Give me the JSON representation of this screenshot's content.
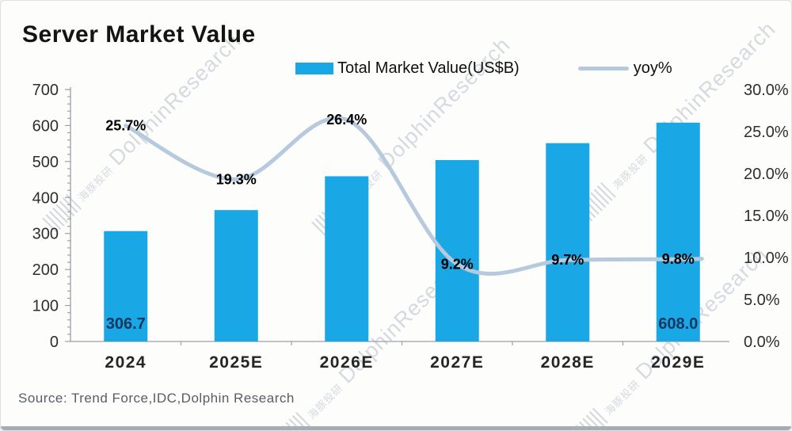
{
  "chart_data": {
    "type": "bar",
    "title": "Server Market Value",
    "categories": [
      "2024",
      "2025E",
      "2026E",
      "2027E",
      "2028E",
      "2029E"
    ],
    "series": [
      {
        "name": "Total Market Value(US$B)",
        "type": "bar",
        "axis": "left",
        "values": [
          306.7,
          365,
          459,
          504,
          551,
          608.0
        ],
        "value_labels": [
          "306.7",
          "",
          "",
          "",
          "",
          "608.0"
        ],
        "color": "#19a7e5",
        "label_color": "#17375e"
      },
      {
        "name": "yoy%",
        "type": "line",
        "axis": "right",
        "values": [
          25.7,
          19.3,
          26.4,
          9.2,
          9.7,
          9.8
        ],
        "value_labels": [
          "25.7%",
          "19.3%",
          "26.4%",
          "9.2%",
          "9.7%",
          "9.8%"
        ],
        "color": "#b6c9dd",
        "label_color": "#000000"
      }
    ],
    "left_axis": {
      "min": 0,
      "max": 700,
      "step": 100,
      "ticks": [
        "0",
        "100",
        "200",
        "300",
        "400",
        "500",
        "600",
        "700"
      ]
    },
    "right_axis": {
      "min": 0,
      "max": 30,
      "step": 5,
      "ticks": [
        "0.0%",
        "5.0%",
        "10.0%",
        "15.0%",
        "20.0%",
        "25.0%",
        "30.0%"
      ]
    },
    "grid": false,
    "legend_position": "top",
    "source": "Source: Trend Force,IDC,Dolphin Research",
    "watermark": {
      "text": "DolphinResearch",
      "cn": "海豚投研"
    },
    "colors": {
      "axis": "#9ba1a6",
      "tick_text": "#2e2e2e"
    }
  }
}
